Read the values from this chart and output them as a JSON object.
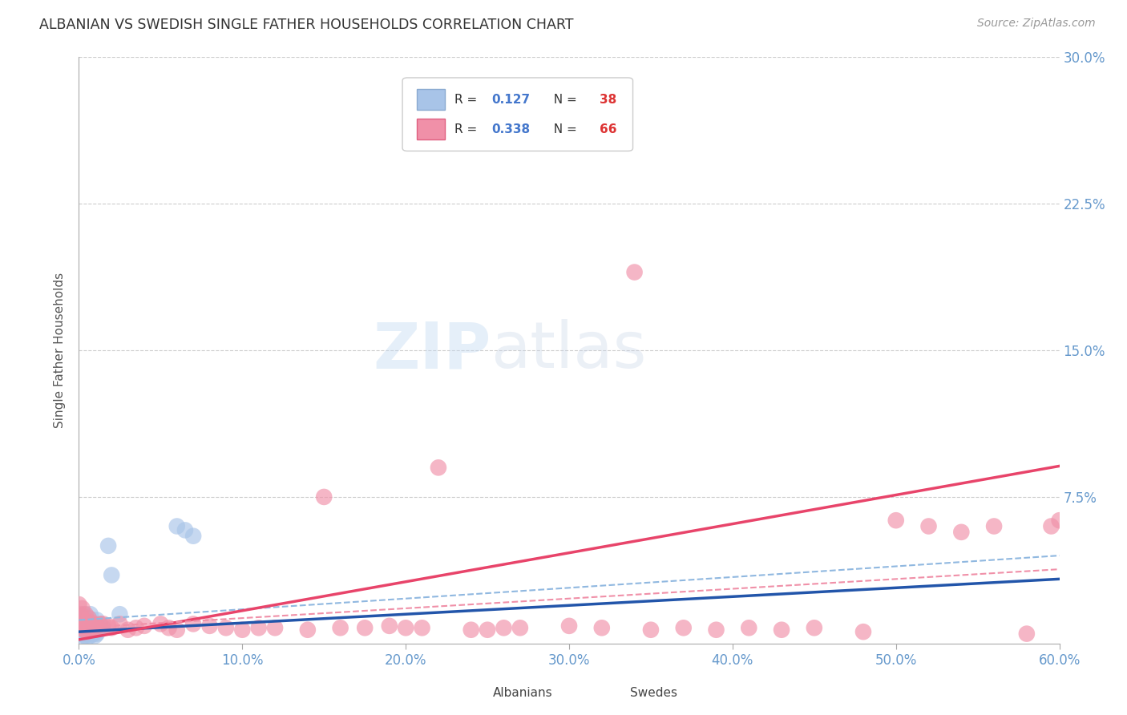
{
  "title": "ALBANIAN VS SWEDISH SINGLE FATHER HOUSEHOLDS CORRELATION CHART",
  "source": "Source: ZipAtlas.com",
  "ylabel": "Single Father Households",
  "xlim": [
    0.0,
    0.6
  ],
  "ylim": [
    0.0,
    0.3
  ],
  "albanians": {
    "x": [
      0.0,
      0.001,
      0.001,
      0.002,
      0.002,
      0.002,
      0.003,
      0.003,
      0.003,
      0.004,
      0.004,
      0.004,
      0.005,
      0.005,
      0.005,
      0.006,
      0.006,
      0.006,
      0.007,
      0.007,
      0.007,
      0.008,
      0.008,
      0.009,
      0.009,
      0.01,
      0.01,
      0.011,
      0.011,
      0.012,
      0.013,
      0.015,
      0.018,
      0.02,
      0.025,
      0.06,
      0.065,
      0.07
    ],
    "y": [
      0.008,
      0.005,
      0.01,
      0.003,
      0.007,
      0.012,
      0.005,
      0.008,
      0.015,
      0.004,
      0.009,
      0.013,
      0.003,
      0.007,
      0.011,
      0.005,
      0.009,
      0.013,
      0.004,
      0.008,
      0.015,
      0.006,
      0.01,
      0.005,
      0.01,
      0.004,
      0.009,
      0.005,
      0.012,
      0.007,
      0.01,
      0.008,
      0.05,
      0.035,
      0.015,
      0.06,
      0.058,
      0.055
    ],
    "color": "#a8c4e8",
    "line_color": "#2255aa",
    "dash_color": "#90b8e0",
    "R": 0.127,
    "N": 38,
    "line_intercept": 0.006,
    "line_slope": 0.045,
    "dash_intercept": 0.012,
    "dash_slope": 0.055
  },
  "swedes": {
    "x": [
      0.0,
      0.001,
      0.001,
      0.002,
      0.002,
      0.003,
      0.003,
      0.004,
      0.004,
      0.005,
      0.005,
      0.006,
      0.006,
      0.007,
      0.007,
      0.008,
      0.009,
      0.01,
      0.011,
      0.012,
      0.013,
      0.015,
      0.018,
      0.02,
      0.025,
      0.03,
      0.035,
      0.04,
      0.05,
      0.055,
      0.06,
      0.07,
      0.08,
      0.09,
      0.1,
      0.11,
      0.12,
      0.14,
      0.15,
      0.16,
      0.175,
      0.19,
      0.2,
      0.21,
      0.22,
      0.24,
      0.25,
      0.26,
      0.27,
      0.3,
      0.32,
      0.34,
      0.35,
      0.37,
      0.39,
      0.41,
      0.43,
      0.45,
      0.48,
      0.5,
      0.52,
      0.54,
      0.56,
      0.58,
      0.595,
      0.6
    ],
    "y": [
      0.02,
      0.01,
      0.015,
      0.008,
      0.018,
      0.007,
      0.012,
      0.009,
      0.015,
      0.006,
      0.01,
      0.008,
      0.013,
      0.007,
      0.011,
      0.008,
      0.01,
      0.007,
      0.009,
      0.008,
      0.01,
      0.01,
      0.009,
      0.008,
      0.01,
      0.007,
      0.008,
      0.009,
      0.01,
      0.008,
      0.007,
      0.01,
      0.009,
      0.008,
      0.007,
      0.008,
      0.008,
      0.007,
      0.075,
      0.008,
      0.008,
      0.009,
      0.008,
      0.008,
      0.09,
      0.007,
      0.007,
      0.008,
      0.008,
      0.009,
      0.008,
      0.19,
      0.007,
      0.008,
      0.007,
      0.008,
      0.007,
      0.008,
      0.006,
      0.063,
      0.06,
      0.057,
      0.06,
      0.005,
      0.06,
      0.063
    ],
    "color": "#f090a8",
    "line_color": "#e8446a",
    "dash_color": "#f090a8",
    "R": 0.338,
    "N": 66,
    "line_intercept": 0.002,
    "line_slope": 0.148,
    "dash_intercept": 0.008,
    "dash_slope": 0.05
  },
  "watermark_zip": "ZIP",
  "watermark_atlas": "atlas",
  "background_color": "#ffffff",
  "grid_color": "#cccccc",
  "title_color": "#333333",
  "tick_color": "#6699cc",
  "ylabel_color": "#555555"
}
